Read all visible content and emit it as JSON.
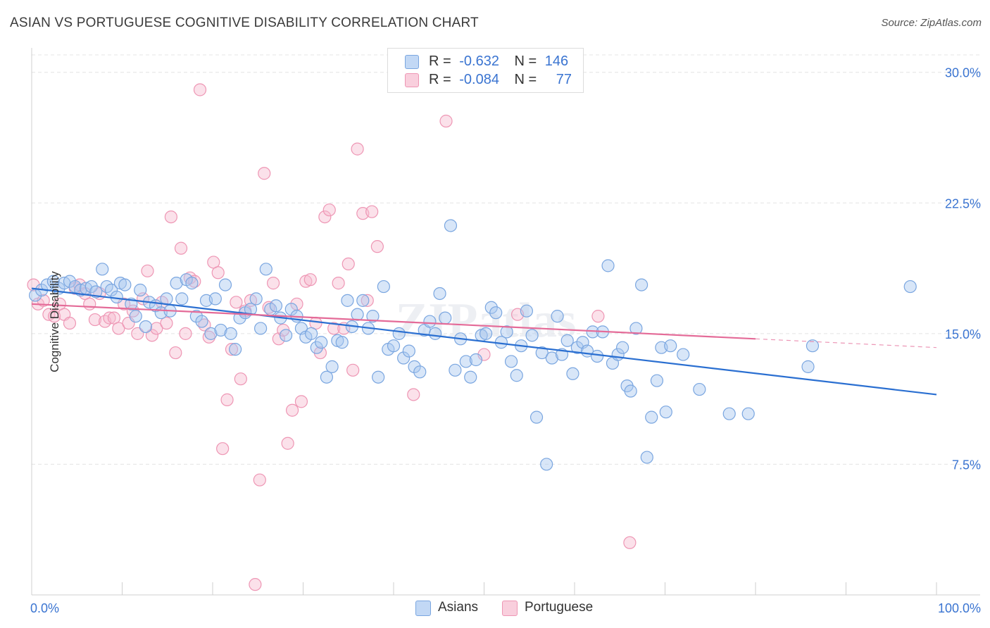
{
  "header": {
    "title": "ASIAN VS PORTUGUESE COGNITIVE DISABILITY CORRELATION CHART",
    "source": "Source: ZipAtlas.com"
  },
  "legend": {
    "rows": [
      {
        "r_label": "R =",
        "r_value": "-0.632",
        "n_label": "N =",
        "n_value": "146"
      },
      {
        "r_label": "R =",
        "r_value": "-0.084",
        "n_label": "N =",
        "n_value": "77"
      }
    ]
  },
  "colors": {
    "asians_fill": "#a9c8f0",
    "asians_stroke": "#7aa6e0",
    "asians_line": "#2a6fd1",
    "portuguese_fill": "#f6bcd0",
    "portuguese_stroke": "#ee96b4",
    "portuguese_line": "#e46b98",
    "tick_label": "#3a74d1",
    "grid": "#e4e4e4"
  },
  "chart_data": {
    "type": "scatter",
    "title": "ASIAN VS PORTUGUESE COGNITIVE DISABILITY CORRELATION CHART",
    "xlabel": "",
    "ylabel": "Cognitive Disability",
    "xlim": [
      0,
      100
    ],
    "ylim": [
      0,
      31
    ],
    "x_tick_labels": [
      "0.0%",
      "100.0%"
    ],
    "y_ticks": [
      7.5,
      15.0,
      22.5,
      30.0
    ],
    "y_tick_labels": [
      "7.5%",
      "15.0%",
      "22.5%",
      "30.0%"
    ],
    "grid": true,
    "legend_position": "top-center",
    "watermark": "ZIPatlas",
    "series": [
      {
        "name": "Asians",
        "r": -0.632,
        "n": 146,
        "trend": {
          "x": [
            0,
            100
          ],
          "y": [
            17.6,
            11.5
          ]
        },
        "points": [
          [
            0.4,
            17.2
          ],
          [
            1.1,
            17.5
          ],
          [
            1.7,
            17.8
          ],
          [
            2.4,
            18.0
          ],
          [
            3.0,
            17.6
          ],
          [
            3.6,
            17.9
          ],
          [
            4.2,
            18.0
          ],
          [
            4.8,
            17.7
          ],
          [
            5.4,
            17.5
          ],
          [
            6.0,
            17.6
          ],
          [
            6.6,
            17.7
          ],
          [
            7.1,
            17.4
          ],
          [
            7.8,
            18.7
          ],
          [
            8.3,
            17.7
          ],
          [
            8.8,
            17.5
          ],
          [
            9.4,
            17.1
          ],
          [
            9.8,
            17.9
          ],
          [
            10.3,
            17.8
          ],
          [
            11.0,
            16.7
          ],
          [
            11.5,
            16.0
          ],
          [
            12.0,
            17.5
          ],
          [
            12.6,
            15.4
          ],
          [
            13.0,
            16.8
          ],
          [
            13.7,
            16.6
          ],
          [
            14.3,
            16.2
          ],
          [
            14.9,
            17.0
          ],
          [
            15.3,
            16.3
          ],
          [
            16.0,
            17.9
          ],
          [
            16.6,
            17.0
          ],
          [
            17.1,
            18.1
          ],
          [
            17.7,
            17.9
          ],
          [
            18.2,
            16.0
          ],
          [
            18.8,
            15.7
          ],
          [
            19.3,
            16.9
          ],
          [
            19.8,
            15.0
          ],
          [
            20.3,
            17.0
          ],
          [
            20.9,
            15.2
          ],
          [
            21.4,
            17.8
          ],
          [
            22.0,
            15.0
          ],
          [
            22.5,
            14.1
          ],
          [
            23.0,
            15.9
          ],
          [
            23.6,
            16.2
          ],
          [
            24.2,
            16.4
          ],
          [
            24.8,
            17.0
          ],
          [
            25.3,
            15.3
          ],
          [
            25.9,
            18.7
          ],
          [
            26.4,
            16.4
          ],
          [
            27.0,
            16.6
          ],
          [
            27.5,
            15.9
          ],
          [
            28.1,
            14.9
          ],
          [
            28.7,
            16.4
          ],
          [
            29.3,
            16.0
          ],
          [
            29.8,
            15.3
          ],
          [
            30.3,
            14.8
          ],
          [
            30.9,
            15.0
          ],
          [
            31.5,
            14.2
          ],
          [
            32.0,
            14.5
          ],
          [
            32.6,
            12.5
          ],
          [
            33.2,
            13.1
          ],
          [
            33.8,
            14.6
          ],
          [
            34.3,
            14.5
          ],
          [
            34.9,
            16.9
          ],
          [
            35.4,
            15.4
          ],
          [
            36.0,
            16.1
          ],
          [
            36.6,
            16.9
          ],
          [
            37.2,
            15.3
          ],
          [
            37.7,
            16.0
          ],
          [
            38.3,
            12.5
          ],
          [
            38.9,
            17.7
          ],
          [
            39.4,
            14.1
          ],
          [
            40.0,
            14.3
          ],
          [
            40.6,
            15.0
          ],
          [
            41.1,
            13.6
          ],
          [
            41.7,
            14.0
          ],
          [
            42.3,
            13.1
          ],
          [
            42.9,
            12.8
          ],
          [
            43.4,
            15.2
          ],
          [
            44.0,
            15.7
          ],
          [
            44.6,
            15.0
          ],
          [
            45.1,
            17.3
          ],
          [
            45.7,
            15.9
          ],
          [
            46.3,
            21.2
          ],
          [
            46.8,
            12.9
          ],
          [
            47.4,
            14.7
          ],
          [
            48.0,
            13.4
          ],
          [
            48.5,
            12.5
          ],
          [
            49.1,
            13.5
          ],
          [
            49.7,
            14.9
          ],
          [
            50.2,
            15.0
          ],
          [
            50.8,
            16.5
          ],
          [
            51.3,
            16.2
          ],
          [
            51.9,
            14.5
          ],
          [
            52.5,
            15.1
          ],
          [
            53.0,
            13.4
          ],
          [
            53.6,
            12.6
          ],
          [
            54.1,
            14.3
          ],
          [
            54.7,
            16.3
          ],
          [
            55.3,
            14.9
          ],
          [
            55.8,
            10.2
          ],
          [
            56.4,
            13.9
          ],
          [
            56.9,
            7.5
          ],
          [
            57.5,
            13.6
          ],
          [
            58.1,
            16.0
          ],
          [
            58.6,
            13.8
          ],
          [
            59.2,
            14.6
          ],
          [
            59.8,
            12.7
          ],
          [
            60.3,
            14.2
          ],
          [
            60.9,
            14.5
          ],
          [
            61.4,
            14.0
          ],
          [
            62.0,
            15.1
          ],
          [
            62.5,
            13.7
          ],
          [
            63.1,
            15.1
          ],
          [
            63.7,
            18.9
          ],
          [
            64.2,
            13.3
          ],
          [
            64.8,
            13.8
          ],
          [
            65.3,
            14.2
          ],
          [
            65.8,
            12.0
          ],
          [
            66.2,
            11.7
          ],
          [
            66.8,
            15.3
          ],
          [
            67.4,
            17.8
          ],
          [
            68.0,
            7.9
          ],
          [
            68.5,
            10.2
          ],
          [
            69.1,
            12.3
          ],
          [
            69.6,
            14.2
          ],
          [
            70.1,
            10.5
          ],
          [
            70.6,
            14.3
          ],
          [
            72.0,
            13.8
          ],
          [
            73.8,
            11.8
          ],
          [
            77.1,
            10.4
          ],
          [
            79.2,
            10.4
          ],
          [
            85.8,
            13.1
          ],
          [
            86.3,
            14.3
          ],
          [
            97.1,
            17.7
          ]
        ]
      },
      {
        "name": "Portuguese",
        "r": -0.084,
        "n": 77,
        "trend": {
          "x": [
            0,
            80,
            100
          ],
          "y": [
            16.7,
            14.7,
            14.2
          ]
        },
        "points": [
          [
            0.2,
            17.8
          ],
          [
            0.7,
            16.7
          ],
          [
            1.3,
            16.9
          ],
          [
            1.9,
            16.1
          ],
          [
            2.5,
            16.0
          ],
          [
            3.1,
            16.7
          ],
          [
            3.6,
            16.1
          ],
          [
            4.2,
            15.6
          ],
          [
            4.8,
            17.6
          ],
          [
            5.3,
            17.8
          ],
          [
            5.9,
            17.3
          ],
          [
            6.4,
            16.7
          ],
          [
            7.0,
            15.8
          ],
          [
            7.5,
            17.3
          ],
          [
            8.1,
            15.7
          ],
          [
            8.6,
            15.9
          ],
          [
            9.1,
            15.9
          ],
          [
            9.6,
            15.3
          ],
          [
            10.2,
            16.7
          ],
          [
            10.7,
            15.6
          ],
          [
            11.2,
            16.3
          ],
          [
            11.7,
            15.0
          ],
          [
            12.3,
            17.0
          ],
          [
            12.8,
            18.6
          ],
          [
            13.3,
            14.9
          ],
          [
            13.8,
            15.3
          ],
          [
            14.4,
            16.8
          ],
          [
            14.9,
            15.6
          ],
          [
            15.4,
            21.7
          ],
          [
            15.9,
            13.9
          ],
          [
            16.5,
            19.9
          ],
          [
            17.0,
            15.0
          ],
          [
            17.5,
            18.2
          ],
          [
            18.0,
            18.0
          ],
          [
            18.6,
            29.0
          ],
          [
            19.1,
            15.5
          ],
          [
            19.6,
            14.8
          ],
          [
            20.1,
            19.1
          ],
          [
            20.6,
            18.5
          ],
          [
            21.1,
            8.4
          ],
          [
            21.6,
            11.2
          ],
          [
            22.1,
            14.1
          ],
          [
            22.6,
            16.8
          ],
          [
            23.1,
            12.4
          ],
          [
            23.6,
            16.3
          ],
          [
            24.2,
            16.9
          ],
          [
            24.7,
            0.6
          ],
          [
            25.2,
            6.6
          ],
          [
            25.7,
            24.2
          ],
          [
            26.2,
            16.5
          ],
          [
            26.7,
            17.9
          ],
          [
            27.3,
            14.7
          ],
          [
            27.8,
            15.2
          ],
          [
            28.3,
            8.7
          ],
          [
            28.8,
            10.6
          ],
          [
            29.3,
            16.7
          ],
          [
            29.8,
            11.1
          ],
          [
            30.3,
            18.0
          ],
          [
            30.8,
            18.1
          ],
          [
            31.4,
            15.6
          ],
          [
            31.9,
            13.9
          ],
          [
            32.4,
            21.7
          ],
          [
            32.9,
            22.1
          ],
          [
            33.4,
            15.3
          ],
          [
            33.9,
            17.9
          ],
          [
            34.5,
            15.3
          ],
          [
            35.0,
            19.0
          ],
          [
            35.5,
            12.9
          ],
          [
            36.0,
            25.6
          ],
          [
            36.6,
            21.9
          ],
          [
            37.1,
            16.9
          ],
          [
            37.6,
            22.0
          ],
          [
            38.2,
            20.0
          ],
          [
            42.2,
            11.5
          ],
          [
            45.8,
            27.2
          ],
          [
            50.0,
            13.8
          ],
          [
            53.7,
            16.1
          ],
          [
            62.6,
            16.0
          ],
          [
            66.1,
            3.0
          ]
        ]
      }
    ]
  }
}
